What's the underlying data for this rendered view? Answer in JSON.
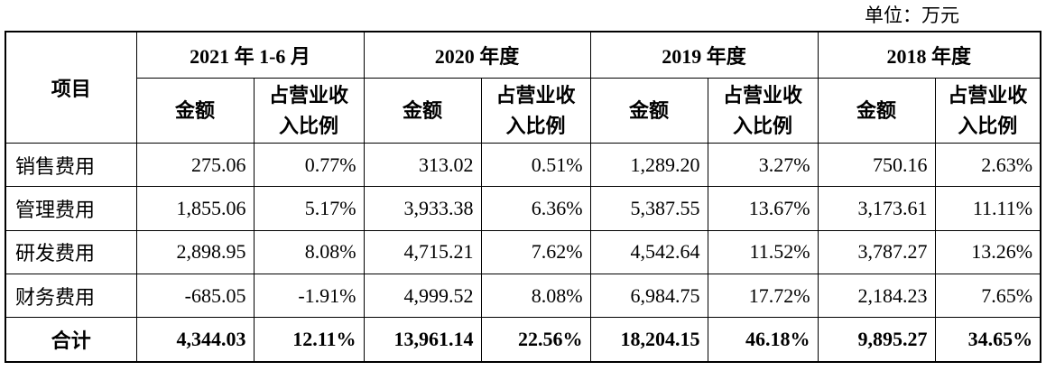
{
  "unit_label": "单位：万元",
  "headers": {
    "item": "项目",
    "periods": [
      "2021 年 1-6 月",
      "2020 年度",
      "2019 年度",
      "2018 年度"
    ],
    "amount": "金额",
    "ratio_line1": "占营业收",
    "ratio_line2": "入比例"
  },
  "rows": [
    {
      "item": "销售费用",
      "cells": [
        "275.06",
        "0.77%",
        "313.02",
        "0.51%",
        "1,289.20",
        "3.27%",
        "750.16",
        "2.63%"
      ]
    },
    {
      "item": "管理费用",
      "cells": [
        "1,855.06",
        "5.17%",
        "3,933.38",
        "6.36%",
        "5,387.55",
        "13.67%",
        "3,173.61",
        "11.11%"
      ]
    },
    {
      "item": "研发费用",
      "cells": [
        "2,898.95",
        "8.08%",
        "4,715.21",
        "7.62%",
        "4,542.64",
        "11.52%",
        "3,787.27",
        "13.26%"
      ]
    },
    {
      "item": "财务费用",
      "cells": [
        "-685.05",
        "-1.91%",
        "4,999.52",
        "8.08%",
        "6,984.75",
        "17.72%",
        "2,184.23",
        "7.65%"
      ]
    }
  ],
  "total": {
    "item": "合计",
    "cells": [
      "4,344.03",
      "12.11%",
      "13,961.14",
      "22.56%",
      "18,204.15",
      "46.18%",
      "9,895.27",
      "34.65%"
    ]
  }
}
